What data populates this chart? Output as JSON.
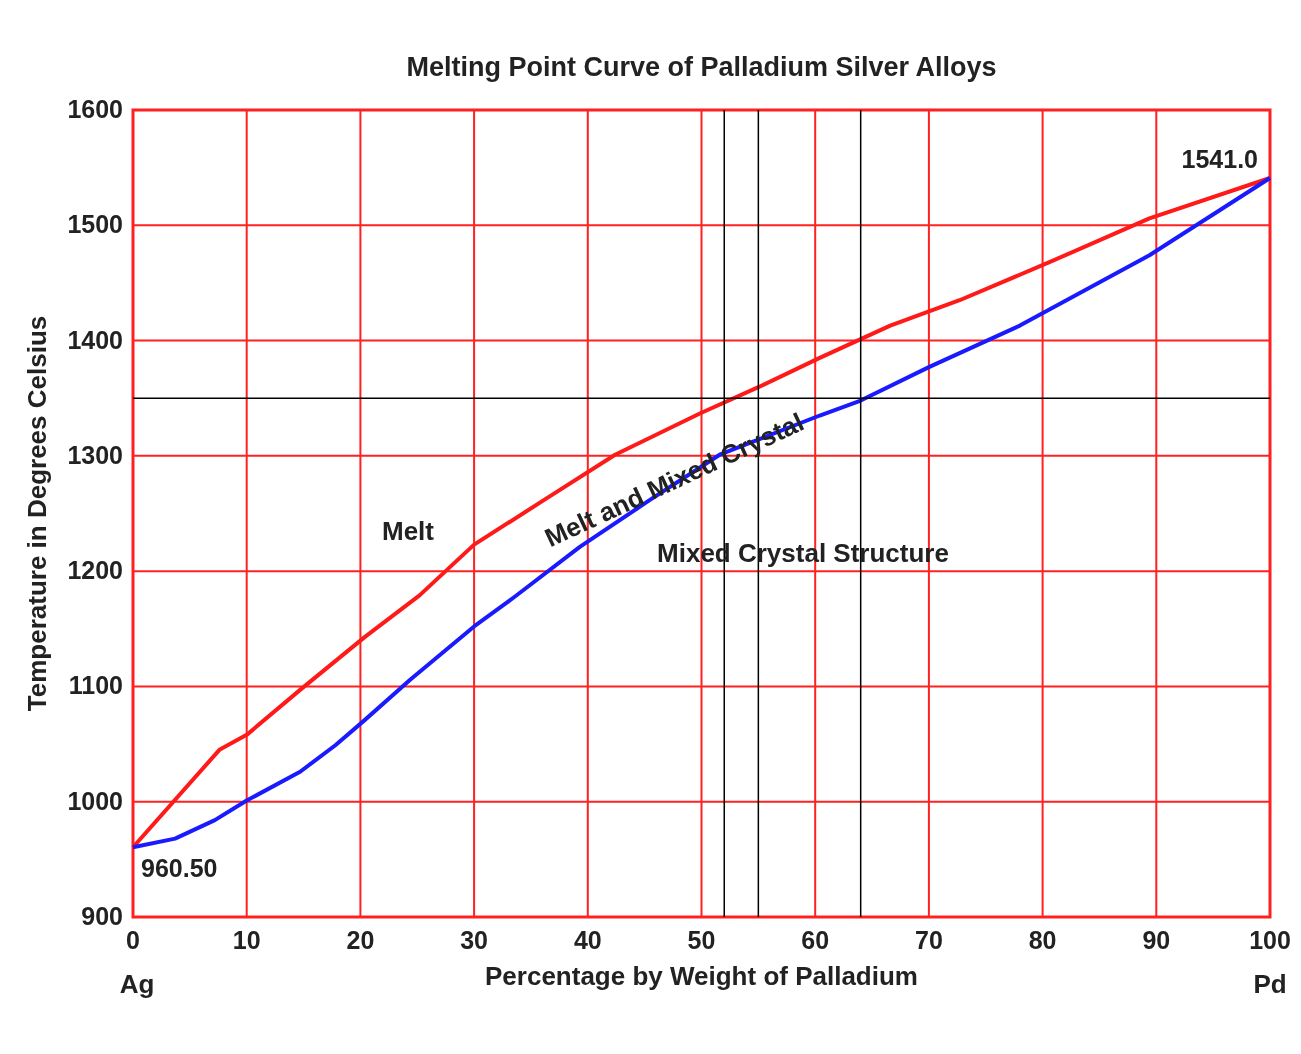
{
  "chart_data": {
    "type": "line",
    "title": "Melting Point Curve of Palladium Silver Alloys",
    "xlabel": "Percentage by Weight of Palladium",
    "ylabel": "Temperature in Degrees Celsius",
    "xlim": [
      0,
      100
    ],
    "ylim": [
      900,
      1600
    ],
    "xticks": [
      0,
      10,
      20,
      30,
      40,
      50,
      60,
      70,
      80,
      90,
      100
    ],
    "yticks": [
      900,
      1000,
      1100,
      1200,
      1300,
      1400,
      1500,
      1600
    ],
    "grid": true,
    "marker": "none",
    "line_style": "solid",
    "series": [
      {
        "color": "#ff1a1a",
        "x": [
          0,
          7.6,
          10,
          14.7,
          20.4,
          25.2,
          30,
          36.2,
          42.4,
          49.9,
          55.1,
          60.4,
          66.6,
          72.7,
          80.6,
          89.4,
          100
        ],
        "values": [
          960.5,
          1045,
          1058,
          1097,
          1143,
          1179,
          1223,
          1262,
          1301,
          1337,
          1360,
          1385,
          1413,
          1435,
          1468,
          1506,
          1541
        ]
      },
      {
        "color": "#1a1aff",
        "x": [
          0,
          3.7,
          7.2,
          10,
          14.7,
          17.8,
          20.4,
          24.4,
          30,
          33.6,
          39.3,
          45.5,
          51.6,
          60.4,
          64,
          70,
          78,
          89.4,
          100
        ],
        "values": [
          960.5,
          968,
          984,
          1001,
          1026,
          1049,
          1071,
          1106,
          1152,
          1178,
          1221,
          1262,
          1301,
          1335,
          1348,
          1377,
          1413,
          1474,
          1541
        ]
      }
    ],
    "ref_lines": [
      {
        "axis": "x",
        "value": 55,
        "color": "#000000"
      },
      {
        "axis": "y",
        "value": 1350,
        "color": "#000000"
      },
      {
        "axis": "x",
        "value": 52,
        "color": "#000000"
      },
      {
        "axis": "x",
        "value": 64,
        "color": "#000000"
      }
    ],
    "annotations": [
      {
        "text": "960.50",
        "x": 0,
        "y": 960.5
      },
      {
        "text": "1541.0",
        "x": 100,
        "y": 1541
      },
      "Melt",
      "Melt and Mixed Crystal",
      "Mixed Crystal Structure",
      "Ag",
      "Pd"
    ]
  }
}
